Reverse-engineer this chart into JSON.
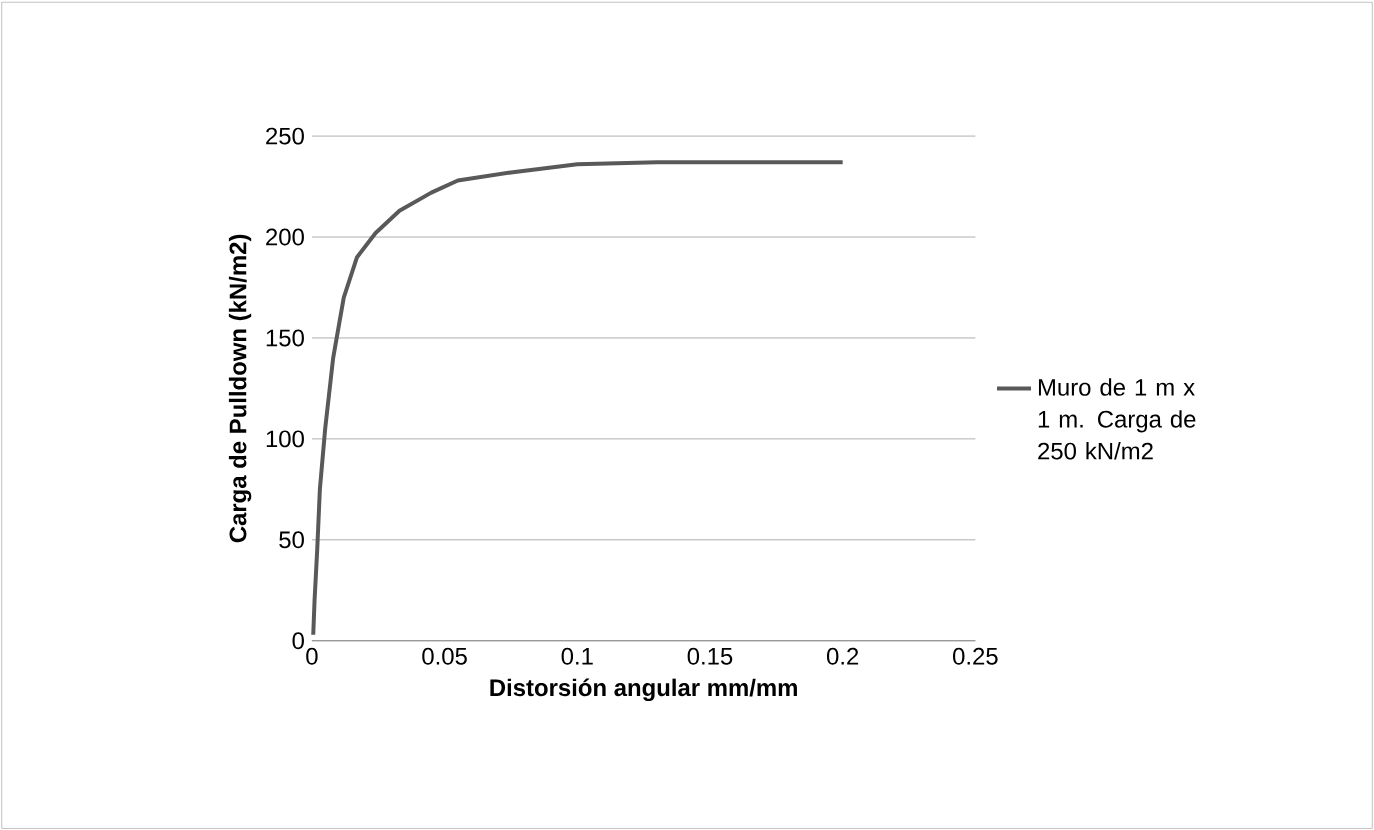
{
  "chart_data": {
    "type": "line",
    "xlabel": "Distorsión angular mm/mm",
    "ylabel": "Carga de Pulldown (kN/m2)",
    "x": [
      0.0005,
      0.001,
      0.002,
      0.003,
      0.005,
      0.008,
      0.012,
      0.017,
      0.024,
      0.033,
      0.045,
      0.055,
      0.075,
      0.1,
      0.13,
      0.16,
      0.2
    ],
    "series": [
      {
        "name": "Muro de 1 m x 1 m. Carga de 250 kN/m2",
        "color": "#595959",
        "values": [
          3,
          20,
          45,
          75,
          105,
          140,
          170,
          190,
          202,
          213,
          222,
          228,
          232,
          236,
          237,
          237,
          237
        ]
      }
    ],
    "xlim": [
      0,
      0.25
    ],
    "ylim": [
      0,
      250
    ],
    "xticks": [
      0,
      0.05,
      0.1,
      0.15,
      0.2,
      0.25
    ],
    "yticks": [
      0,
      50,
      100,
      150,
      200,
      250
    ],
    "grid": "y",
    "legend": "right",
    "marker": "none",
    "line_style": "solid"
  }
}
